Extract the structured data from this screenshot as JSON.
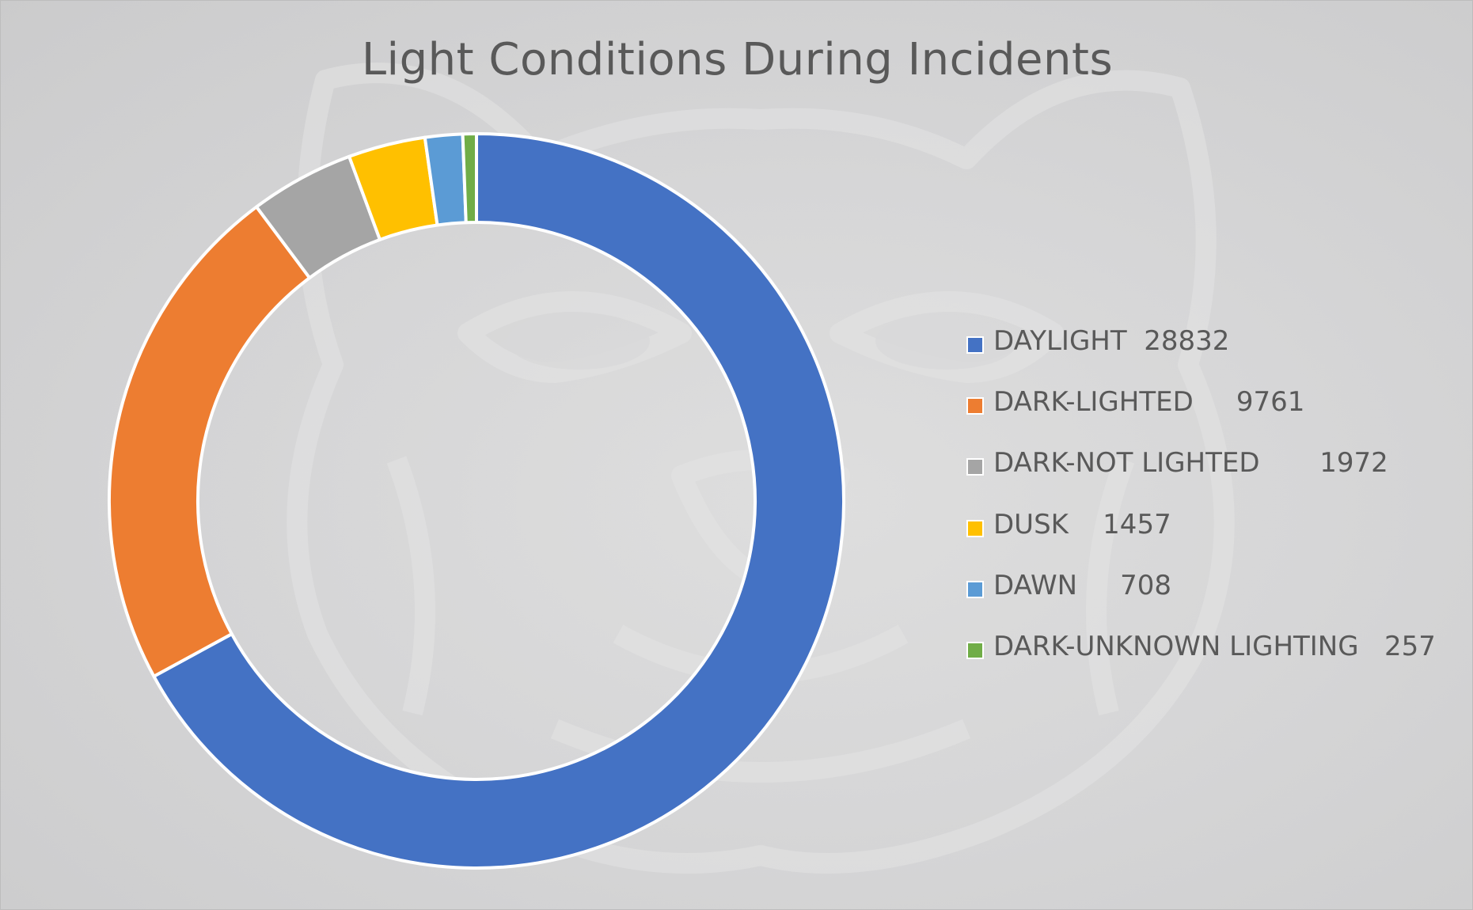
{
  "chart_data": {
    "type": "pie",
    "variant": "donut",
    "title": "Light Conditions During Incidents",
    "legend_position": "right",
    "grid": false,
    "slices": [
      {
        "label": "DAYLIGHT  28832",
        "category": "DAYLIGHT",
        "value": 28832,
        "color": "#4472C4"
      },
      {
        "label": "DARK-LIGHTED     9761",
        "category": "DARK-LIGHTED",
        "value": 9761,
        "color": "#ED7D31"
      },
      {
        "label": "DARK-NOT LIGHTED       1972",
        "category": "DARK-NOT LIGHTED",
        "value": 1972,
        "color": "#A5A5A5"
      },
      {
        "label": "DUSK    1457",
        "category": "DUSK",
        "value": 1457,
        "color": "#FFC000"
      },
      {
        "label": "DAWN     708",
        "category": "DAWN",
        "value": 708,
        "color": "#5B9BD5"
      },
      {
        "label": "DARK-UNKNOWN LIGHTING   257",
        "category": "DARK-UNKNOWN LIGHTING",
        "value": 257,
        "color": "#70AD47"
      }
    ]
  },
  "background": {
    "watermark": "wildcat-mascot-watermark"
  }
}
